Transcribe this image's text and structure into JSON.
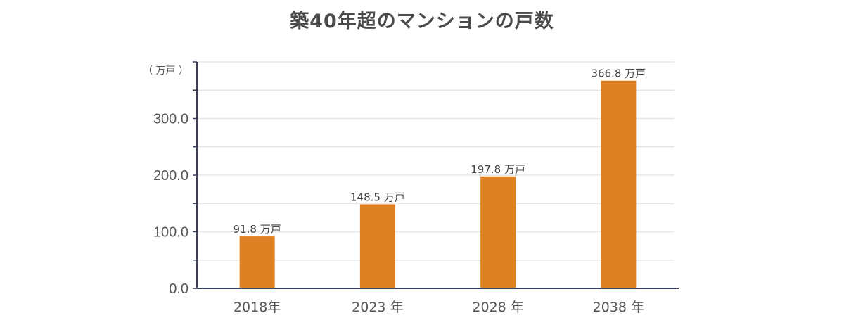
{
  "chart_data": {
    "type": "bar",
    "title": "築40年超のマンションの戸数",
    "unit_label": "（ 万戸 ）",
    "categories": [
      "2018年",
      "2023 年",
      "2028 年",
      "2038 年"
    ],
    "values": [
      91.8,
      148.5,
      197.8,
      366.8
    ],
    "data_labels": [
      "91.8 万戸",
      "148.5 万戸",
      "197.8 万戸",
      "366.8 万戸"
    ],
    "y_ticks": [
      "0.0",
      "100.0",
      "200.0",
      "300.0"
    ],
    "ylim": [
      0,
      400
    ],
    "grid": true,
    "bar_color": "#df8025",
    "axis_color": "#3a3f5c",
    "grid_color": "#e6e6e6"
  }
}
